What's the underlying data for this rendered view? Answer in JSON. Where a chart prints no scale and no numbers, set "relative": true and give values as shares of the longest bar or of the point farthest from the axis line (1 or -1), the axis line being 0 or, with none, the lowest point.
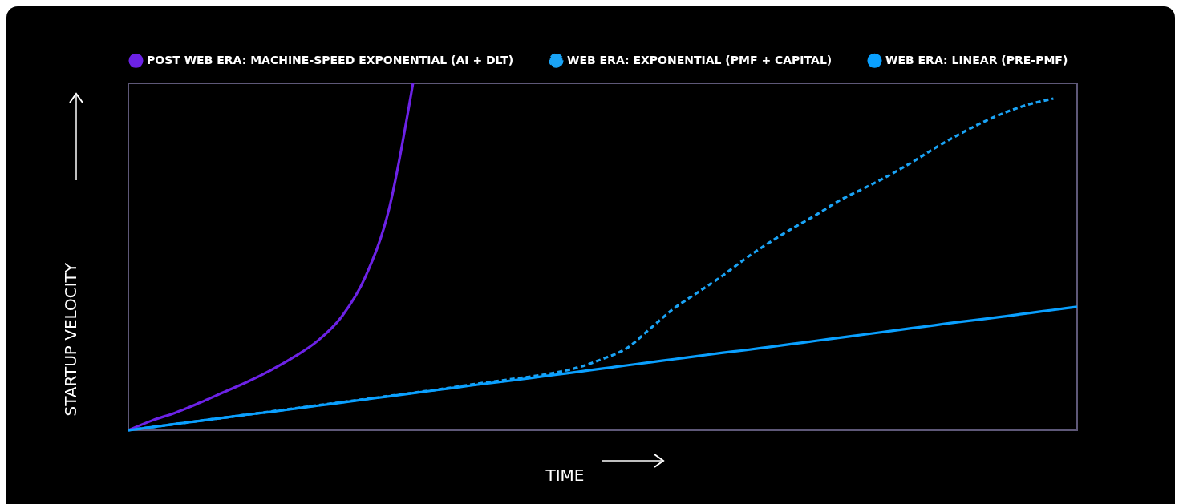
{
  "chart_data": {
    "type": "line",
    "relative": true,
    "xlabel": "TIME",
    "ylabel": "STARTUP VELOCITY",
    "legend": "top",
    "grid": false,
    "categories": [
      null,
      null,
      null,
      null,
      null,
      null,
      null,
      null,
      null,
      null,
      null,
      null,
      null,
      null,
      null,
      null,
      null,
      null,
      null,
      null,
      null,
      null,
      null,
      null,
      null,
      null,
      null,
      null,
      null,
      null,
      null,
      null,
      null,
      null,
      null,
      null,
      null,
      null,
      null,
      null,
      null
    ],
    "series": [
      {
        "name": "POST WEB ERA: MACHINE-SPEED EXPONENTIAL (AI + DLT)",
        "color": "#6c22e6",
        "line_style": "solid",
        "values": [
          0,
          0.028,
          0.051,
          0.079,
          0.109,
          0.139,
          0.173,
          0.212,
          0.259,
          0.328,
          0.443,
          0.64,
          1,
          null,
          null,
          null,
          null,
          null,
          null,
          null,
          null,
          null,
          null,
          null,
          null,
          null,
          null,
          null,
          null,
          null,
          null,
          null,
          null,
          null,
          null,
          null,
          null,
          null,
          null,
          null,
          null
        ]
      },
      {
        "name": "WEB ERA: EXPONENTIAL (PMF + CAPITAL)",
        "color": "#1aa3f5",
        "line_style": "dashed",
        "values": [
          0,
          0.009,
          0.018,
          0.027,
          0.036,
          0.045,
          0.054,
          0.063,
          0.072,
          0.081,
          0.09,
          0.099,
          0.108,
          0.117,
          0.127,
          0.137,
          0.146,
          0.155,
          0.166,
          0.182,
          0.206,
          0.236,
          0.293,
          0.351,
          0.397,
          0.443,
          0.494,
          0.54,
          0.582,
          0.621,
          0.663,
          0.697,
          0.732,
          0.771,
          0.813,
          0.852,
          0.887,
          0.917,
          0.94,
          0.956,
          null
        ]
      },
      {
        "name": "WEB ERA: LINEAR (PRE-PMF)",
        "color": "#0aa0ff",
        "line_style": "solid",
        "values": [
          0,
          0.009,
          0.018,
          0.027,
          0.036,
          0.045,
          0.053,
          0.062,
          0.071,
          0.08,
          0.089,
          0.098,
          0.107,
          0.116,
          0.125,
          0.134,
          0.142,
          0.151,
          0.16,
          0.169,
          0.178,
          0.187,
          0.196,
          0.205,
          0.214,
          0.223,
          0.231,
          0.24,
          0.249,
          0.258,
          0.267,
          0.276,
          0.285,
          0.294,
          0.303,
          0.312,
          0.32,
          0.329,
          0.338,
          0.347,
          0.356
        ]
      }
    ]
  }
}
